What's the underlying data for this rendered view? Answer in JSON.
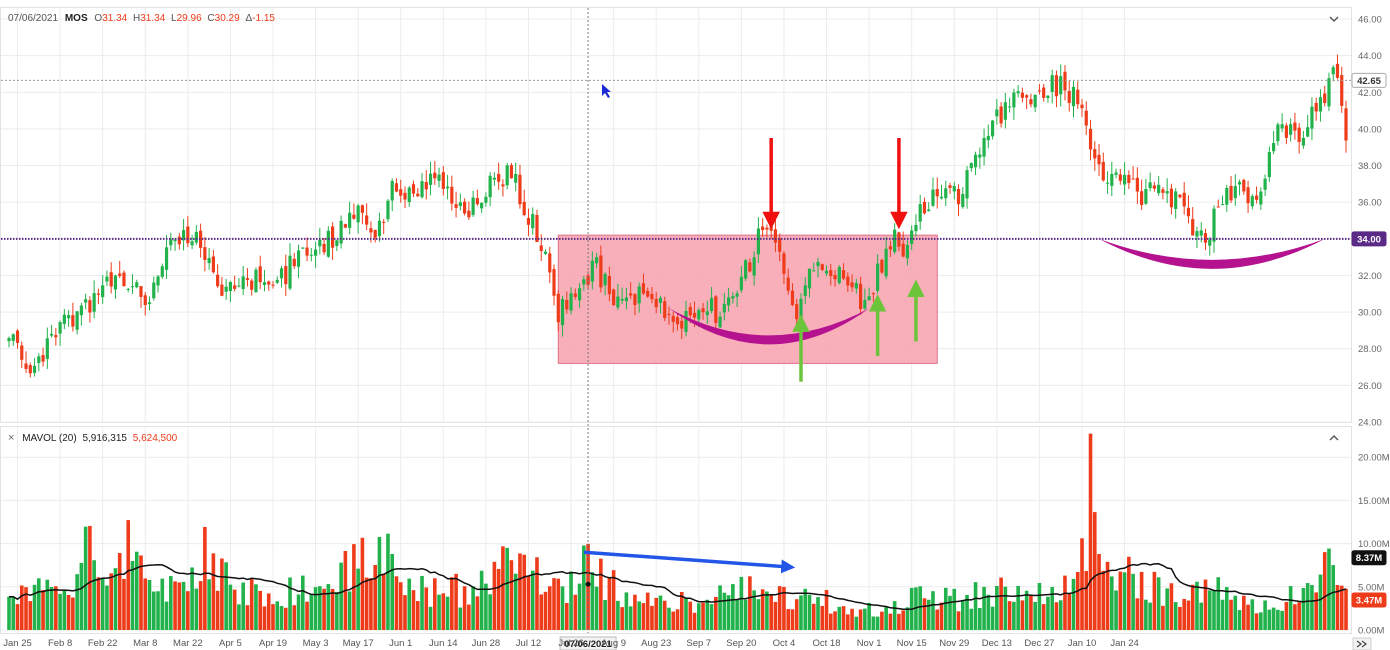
{
  "header": {
    "date": "07/06/2021",
    "symbol": "MOS",
    "o_label": "O",
    "o": "31.34",
    "h_label": "H",
    "h": "31.34",
    "l_label": "L",
    "l": "29.96",
    "c_label": "C",
    "c": "30.29",
    "d_label": "Δ",
    "d": "-1.15"
  },
  "volume_header": {
    "close_glyph": "×",
    "label": "MAVOL (20)",
    "v1": "5,916,315",
    "v2": "5,624,500"
  },
  "crosshair_date": "07/06/2021",
  "price_badge": "42.65",
  "level_badge": "34.00",
  "vol_badge_ma": "8.37M",
  "vol_badge_last": "3.47M",
  "icons": {
    "collapse": "chevron-down-icon",
    "expand": "chevron-up-icon",
    "scroll": "double-chevron-right-icon"
  },
  "colors": {
    "up": "#22b24c",
    "down": "#ee3b1a",
    "level": "#5b2a86",
    "box": "#f7a1ae",
    "arc": "#b5128f",
    "arrow_red": "#f01010",
    "arrow_green": "#6cc43a",
    "arrow_blue": "#2356e6"
  },
  "chart_data": {
    "type": "candlestick",
    "price_axis": {
      "ticks": [
        "46.00",
        "44.00",
        "42.00",
        "40.00",
        "38.00",
        "36.00",
        "34.00",
        "32.00",
        "30.00",
        "28.00",
        "26.00",
        "24.00"
      ],
      "range": [
        24,
        46.6
      ]
    },
    "volume_axis": {
      "ticks": [
        "20.00M",
        "15.00M",
        "10.00M",
        "5.00M",
        "0.00M"
      ],
      "range_millions": [
        0,
        23.5
      ]
    },
    "x_ticks": [
      "Jan 25",
      "Feb 8",
      "Feb 22",
      "Mar 8",
      "Mar 22",
      "Apr 5",
      "Apr 19",
      "May 3",
      "May 17",
      "Jun 1",
      "Jun 14",
      "Jun 28",
      "Jul 12",
      "Jul 26",
      "Aug 9",
      "Aug 23",
      "Sep 7",
      "Sep 20",
      "Oct 4",
      "Oct 18",
      "Nov 1",
      "Nov 15",
      "Nov 29",
      "Dec 13",
      "Dec 27",
      "Jan 10",
      "Jan 24"
    ],
    "close_keypoints": [
      [
        0,
        28.8
      ],
      [
        5,
        26.6
      ],
      [
        12,
        29.2
      ],
      [
        18,
        30.2
      ],
      [
        26,
        32.3
      ],
      [
        33,
        30.5
      ],
      [
        38,
        33.8
      ],
      [
        44,
        34.2
      ],
      [
        50,
        31.0
      ],
      [
        56,
        32.0
      ],
      [
        62,
        31.2
      ],
      [
        70,
        33.7
      ],
      [
        76,
        34.0
      ],
      [
        82,
        35.8
      ],
      [
        86,
        34.0
      ],
      [
        91,
        37.2
      ],
      [
        95,
        36.0
      ],
      [
        101,
        37.6
      ],
      [
        107,
        35.0
      ],
      [
        112,
        36.8
      ],
      [
        118,
        37.6
      ],
      [
        122,
        35.4
      ],
      [
        126,
        32.8
      ],
      [
        129,
        30.0
      ],
      [
        134,
        31.8
      ],
      [
        138,
        32.4
      ],
      [
        143,
        30.3
      ],
      [
        150,
        31.4
      ],
      [
        154,
        29.8
      ],
      [
        157,
        28.8
      ],
      [
        162,
        30.6
      ],
      [
        167,
        29.8
      ],
      [
        172,
        31.6
      ],
      [
        176,
        34.0
      ],
      [
        179,
        34.5
      ],
      [
        182,
        32.2
      ],
      [
        185,
        30.0
      ],
      [
        188,
        32.2
      ],
      [
        193,
        32.6
      ],
      [
        198,
        31.6
      ],
      [
        201,
        30.4
      ],
      [
        205,
        32.8
      ],
      [
        208,
        34.0
      ],
      [
        211,
        33.2
      ],
      [
        214,
        35.5
      ],
      [
        219,
        36.8
      ],
      [
        223,
        36.2
      ],
      [
        228,
        38.5
      ],
      [
        232,
        40.5
      ],
      [
        236,
        42.0
      ],
      [
        240,
        41.5
      ],
      [
        244,
        42.4
      ],
      [
        248,
        42.3
      ],
      [
        251,
        41.6
      ],
      [
        253,
        40.8
      ],
      [
        255,
        38.0
      ],
      [
        259,
        37.0
      ],
      [
        263,
        37.5
      ],
      [
        266,
        36.2
      ],
      [
        269,
        37.2
      ],
      [
        273,
        36.2
      ],
      [
        276,
        35.5
      ],
      [
        279,
        33.8
      ],
      [
        282,
        34.6
      ],
      [
        285,
        36.2
      ],
      [
        288,
        36.8
      ],
      [
        292,
        35.8
      ],
      [
        295,
        37.6
      ],
      [
        298,
        40.0
      ],
      [
        302,
        39.6
      ],
      [
        306,
        40.6
      ],
      [
        309,
        41.8
      ],
      [
        311,
        43.9
      ],
      [
        312,
        42.2
      ],
      [
        313,
        41.0
      ],
      [
        314,
        39.6
      ]
    ],
    "volume_keypoints_millions": [
      [
        0,
        2.9
      ],
      [
        5,
        5.0
      ],
      [
        10,
        4.2
      ],
      [
        15,
        5.5
      ],
      [
        18,
        12.5
      ],
      [
        22,
        6.2
      ],
      [
        26,
        11.8
      ],
      [
        30,
        6.5
      ],
      [
        36,
        4.2
      ],
      [
        40,
        4.8
      ],
      [
        46,
        8.6
      ],
      [
        52,
        5.5
      ],
      [
        60,
        4.2
      ],
      [
        68,
        4.6
      ],
      [
        74,
        5.2
      ],
      [
        82,
        7.2
      ],
      [
        86,
        11.7
      ],
      [
        92,
        6.4
      ],
      [
        100,
        4.2
      ],
      [
        108,
        4.8
      ],
      [
        114,
        5.5
      ],
      [
        120,
        9.8
      ],
      [
        126,
        4.0
      ],
      [
        132,
        5.5
      ],
      [
        136,
        11.2
      ],
      [
        140,
        5.8
      ],
      [
        146,
        4.0
      ],
      [
        154,
        4.2
      ],
      [
        160,
        2.9
      ],
      [
        168,
        5.0
      ],
      [
        176,
        4.6
      ],
      [
        184,
        3.4
      ],
      [
        192,
        3.2
      ],
      [
        200,
        2.4
      ],
      [
        208,
        3.2
      ],
      [
        214,
        4.2
      ],
      [
        220,
        3.5
      ],
      [
        228,
        4.0
      ],
      [
        234,
        4.8
      ],
      [
        240,
        4.2
      ],
      [
        246,
        4.0
      ],
      [
        250,
        7.5
      ],
      [
        252,
        14.6
      ],
      [
        253,
        11.5
      ],
      [
        254,
        21.8
      ],
      [
        255,
        14.2
      ],
      [
        258,
        5.5
      ],
      [
        264,
        6.0
      ],
      [
        270,
        4.5
      ],
      [
        276,
        4.2
      ],
      [
        282,
        5.2
      ],
      [
        288,
        4.0
      ],
      [
        294,
        3.2
      ],
      [
        300,
        3.6
      ],
      [
        304,
        3.4
      ],
      [
        308,
        5.1
      ],
      [
        310,
        8.4
      ],
      [
        312,
        6.2
      ],
      [
        314,
        3.5
      ]
    ],
    "annotations": [
      {
        "type": "box",
        "from_day": 129,
        "to_day": 218,
        "from_price": 27.2,
        "to_price": 34.2
      },
      {
        "type": "horizontal_line",
        "price": 34.0
      },
      {
        "type": "horizontal_line",
        "price": 42.65
      },
      {
        "type": "vertical_line",
        "date": "07/06/2021"
      }
    ]
  }
}
